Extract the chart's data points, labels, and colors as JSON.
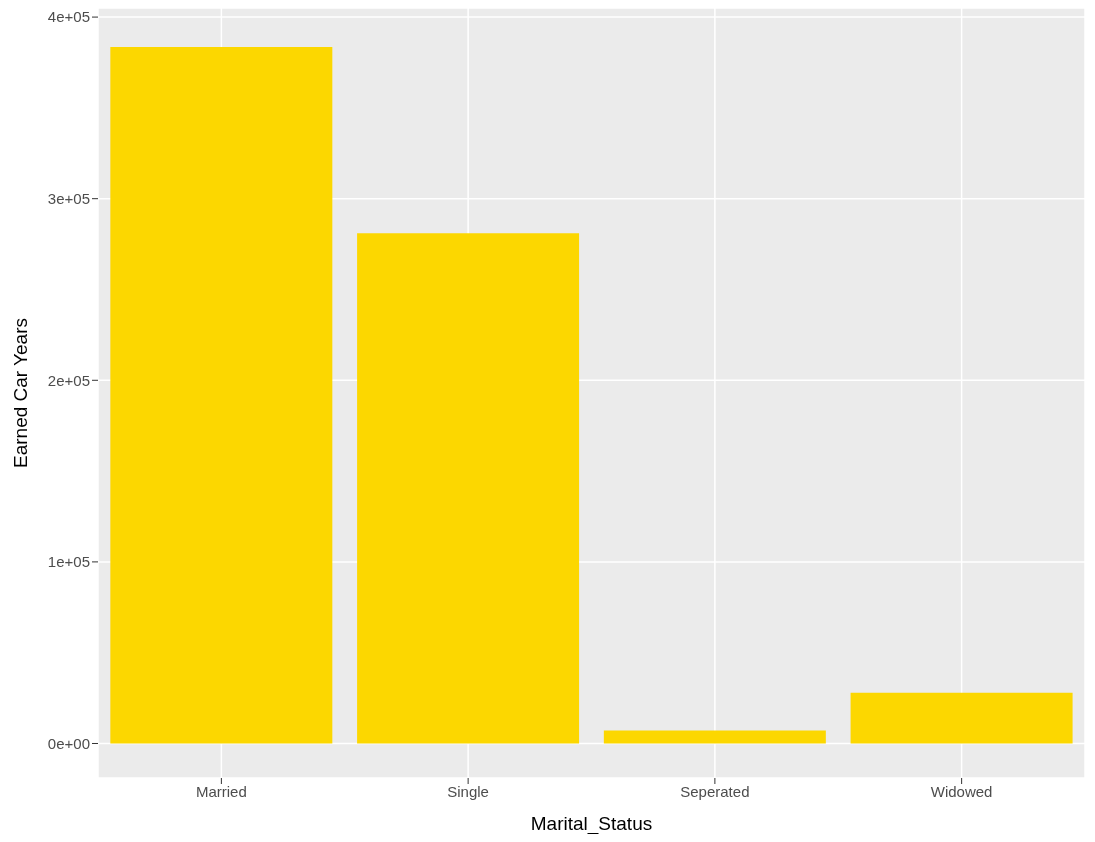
{
  "chart_data": {
    "type": "bar",
    "xlabel": "Marital_Status",
    "ylabel": "Earned Car Years",
    "categories": [
      "Married",
      "Single",
      "Seperated",
      "Widowed"
    ],
    "values": [
      383500,
      281000,
      7100,
      28000
    ],
    "color": "#fcd700",
    "ylim": [
      -19000,
      405000
    ],
    "yticks": [
      {
        "value": 0,
        "label": "0e+00"
      },
      {
        "value": 100000,
        "label": "1e+05"
      },
      {
        "value": 200000,
        "label": "2e+05"
      },
      {
        "value": 300000,
        "label": "3e+05"
      },
      {
        "value": 400000,
        "label": "4e+05"
      }
    ],
    "grid": true
  }
}
